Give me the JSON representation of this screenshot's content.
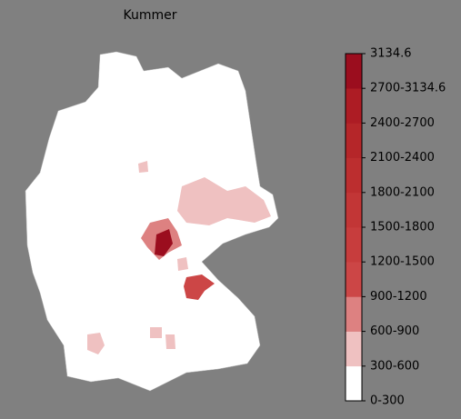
{
  "title": "Kummer",
  "colorbar": {
    "labels": [
      "0-300",
      "300-600",
      "600-900",
      "900-1200",
      "1200-1500",
      "1500-1800",
      "1800-2100",
      "2100-2400",
      "2400-2700",
      "2700-3134.6",
      "3134.6"
    ],
    "colors": [
      "#ffffff",
      "#efc1c1",
      "#dd8181",
      "#cc4646",
      "#c73d3d",
      "#c23636",
      "#bc2e2f",
      "#b52629",
      "#ad1c24",
      "#9b0d1e"
    ]
  }
}
